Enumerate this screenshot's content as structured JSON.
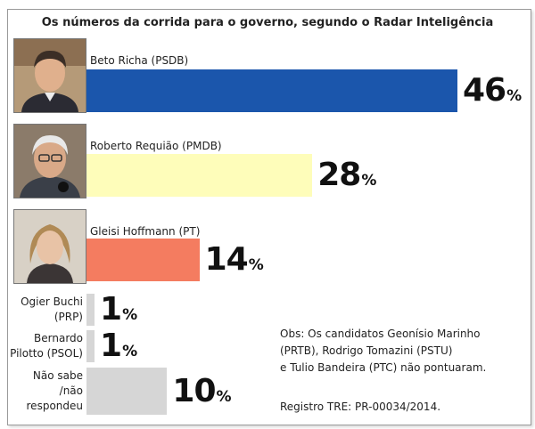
{
  "chart_data": {
    "type": "bar",
    "orientation": "horizontal",
    "title": "Os números da corrida para o governo, segundo o Radar Inteligência",
    "categories": [
      "Beto Richa (PSDB)",
      "Roberto Requião (PMDB)",
      "Gleisi Hoffmann (PT)",
      "Ogier Buchi (PRP)",
      "Bernardo Pilotto (PSOL)",
      "Não sabe /não respondeu"
    ],
    "values": [
      46,
      28,
      14,
      1,
      1,
      10
    ],
    "value_suffix": "%",
    "bar_colors": [
      "#1b56ac",
      "#fefdba",
      "#f47c60",
      "#d6d6d6",
      "#d6d6d6",
      "#d6d6d6"
    ],
    "grid": false,
    "legend": "none"
  },
  "labels_multiline": {
    "ogier": [
      "Ogier Buchi",
      "(PRP)"
    ],
    "bernardo": [
      "Bernardo",
      "Pilotto (PSOL)"
    ],
    "nao_sabe": [
      "Não sabe",
      "/não",
      "respondeu"
    ]
  },
  "note": {
    "lines": [
      "Obs: Os candidatos Geonísio Marinho",
      "(PRTB), Rodrigo Tomazini (PSTU)",
      "e Tulio Bandeira (PTC) não pontuaram."
    ]
  },
  "registry": "Registro TRE:  PR-00034/2014."
}
